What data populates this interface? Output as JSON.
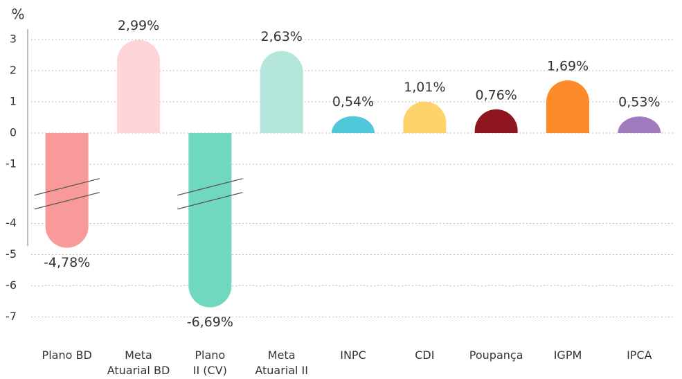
{
  "chart_data": {
    "type": "bar",
    "y_label": "%",
    "categories": [
      "Plano BD",
      "Meta\nAtuarial BD",
      "Plano\nII (CV)",
      "Meta\nAtuarial II",
      "INPC",
      "CDI",
      "Poupança",
      "IGPM",
      "IPCA"
    ],
    "values": [
      -4.78,
      2.99,
      -6.69,
      2.63,
      0.54,
      1.01,
      0.76,
      1.69,
      0.53
    ],
    "value_labels": [
      "-4,78%",
      "2,99%",
      "-6,69%",
      "2,63%",
      "0,54%",
      "1,01%",
      "0,76%",
      "1,69%",
      "0,53%"
    ],
    "colors": [
      "#f99a9a",
      "#ffd4d6",
      "#6fd8bf",
      "#b5e6dc",
      "#4fc8da",
      "#ffd36b",
      "#8f1520",
      "#ff8a2a",
      "#a07cbf"
    ],
    "ylim": [
      -7,
      3
    ],
    "yticks": [
      3,
      2,
      1,
      0,
      -1,
      -4,
      -5,
      -6,
      -7
    ],
    "grid": true,
    "axis_break": true
  }
}
